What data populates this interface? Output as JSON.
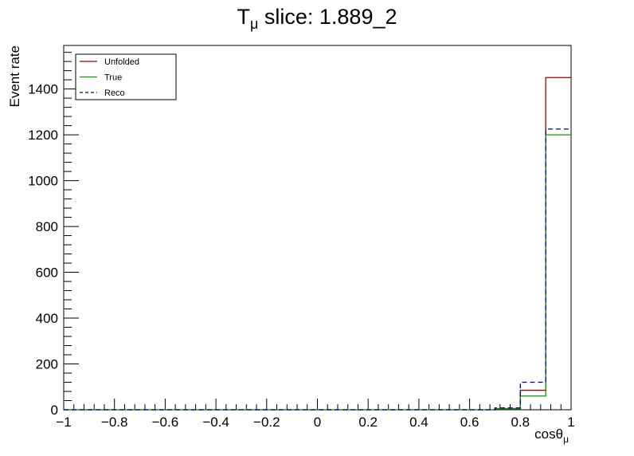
{
  "chart_data": {
    "type": "line",
    "title_main": "T",
    "title_sub": "μ",
    "title_rest": " slice: 1.889_2",
    "xlabel_main": "cosθ",
    "xlabel_sub": "μ",
    "ylabel": "Event rate",
    "xlim": [
      -1,
      1
    ],
    "ylim": [
      0,
      1590
    ],
    "x_ticks": [
      -1,
      -0.8,
      -0.6,
      -0.4,
      -0.2,
      0,
      0.2,
      0.4,
      0.6,
      0.8,
      1
    ],
    "x_tick_labels": [
      "−1",
      "−0.8",
      "−0.6",
      "−0.4",
      "−0.2",
      "0",
      "0.2",
      "0.4",
      "0.6",
      "0.8",
      "1"
    ],
    "y_ticks": [
      0,
      200,
      400,
      600,
      800,
      1000,
      1200,
      1400
    ],
    "y_tick_labels": [
      "0",
      "200",
      "400",
      "600",
      "800",
      "1000",
      "1200",
      "1400"
    ],
    "bin_edges": [
      -1,
      -0.9,
      -0.8,
      -0.7,
      -0.6,
      -0.5,
      -0.4,
      -0.3,
      -0.2,
      -0.1,
      0,
      0.1,
      0.2,
      0.3,
      0.4,
      0.5,
      0.6,
      0.7,
      0.8,
      0.9,
      1
    ],
    "series": [
      {
        "name": "Unfolded",
        "color": "#a00000",
        "dash": false,
        "values": [
          0,
          0,
          0,
          0,
          0,
          0,
          0,
          0,
          0,
          0,
          0,
          0,
          0,
          0,
          0,
          0,
          0,
          5,
          85,
          1450
        ]
      },
      {
        "name": "True",
        "color": "#00a000",
        "dash": false,
        "values": [
          0,
          0,
          0,
          0,
          0,
          0,
          0,
          0,
          0,
          0,
          0,
          0,
          0,
          0,
          0,
          0,
          0,
          5,
          60,
          1200
        ]
      },
      {
        "name": "Reco",
        "color": "#0000a0",
        "dash": true,
        "values": [
          0,
          0,
          0,
          0,
          0,
          0,
          0,
          0,
          0,
          0,
          0,
          0,
          0,
          0,
          0,
          0,
          0,
          8,
          120,
          1225
        ]
      }
    ],
    "legend_position": "top-left",
    "grid": false
  }
}
